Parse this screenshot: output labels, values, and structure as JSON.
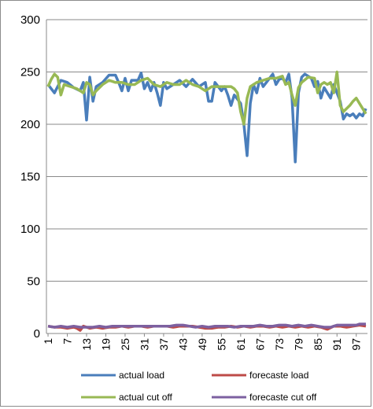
{
  "chart_data": {
    "type": "line",
    "title": "",
    "xlabel": "",
    "ylabel": "",
    "ylim": [
      0,
      300
    ],
    "yticks": [
      0,
      50,
      100,
      150,
      200,
      250,
      300
    ],
    "xlim": [
      1,
      100
    ],
    "xticks": [
      1,
      7,
      13,
      19,
      25,
      31,
      37,
      43,
      49,
      55,
      61,
      67,
      73,
      79,
      85,
      91,
      97
    ],
    "grid": "horizontal",
    "legend": "bottom",
    "series": [
      {
        "name": "actual load",
        "color": "#4a7ebb",
        "keypoints": [
          [
            1,
            238
          ],
          [
            3,
            230
          ],
          [
            5,
            242
          ],
          [
            7,
            240
          ],
          [
            9,
            235
          ],
          [
            11,
            232
          ],
          [
            12,
            240
          ],
          [
            13,
            204
          ],
          [
            14,
            245
          ],
          [
            15,
            222
          ],
          [
            16,
            236
          ],
          [
            18,
            240
          ],
          [
            20,
            247
          ],
          [
            22,
            247
          ],
          [
            23,
            240
          ],
          [
            24,
            232
          ],
          [
            25,
            244
          ],
          [
            26,
            232
          ],
          [
            27,
            242
          ],
          [
            29,
            242
          ],
          [
            30,
            249
          ],
          [
            31,
            234
          ],
          [
            32,
            240
          ],
          [
            33,
            232
          ],
          [
            34,
            240
          ],
          [
            35,
            230
          ],
          [
            36,
            218
          ],
          [
            37,
            240
          ],
          [
            38,
            234
          ],
          [
            40,
            238
          ],
          [
            42,
            242
          ],
          [
            44,
            236
          ],
          [
            46,
            243
          ],
          [
            48,
            236
          ],
          [
            50,
            240
          ],
          [
            51,
            222
          ],
          [
            52,
            222
          ],
          [
            53,
            240
          ],
          [
            55,
            232
          ],
          [
            56,
            236
          ],
          [
            57,
            228
          ],
          [
            58,
            218
          ],
          [
            59,
            228
          ],
          [
            60,
            224
          ],
          [
            61,
            220
          ],
          [
            62,
            200
          ],
          [
            63,
            170
          ],
          [
            64,
            220
          ],
          [
            65,
            238
          ],
          [
            66,
            230
          ],
          [
            67,
            244
          ],
          [
            68,
            236
          ],
          [
            70,
            244
          ],
          [
            71,
            248
          ],
          [
            72,
            238
          ],
          [
            73,
            243
          ],
          [
            74,
            244
          ],
          [
            75,
            240
          ],
          [
            76,
            248
          ],
          [
            77,
            225
          ],
          [
            78,
            164
          ],
          [
            79,
            230
          ],
          [
            80,
            245
          ],
          [
            81,
            248
          ],
          [
            83,
            244
          ],
          [
            84,
            236
          ],
          [
            85,
            241
          ],
          [
            86,
            225
          ],
          [
            87,
            235
          ],
          [
            89,
            225
          ],
          [
            90,
            238
          ],
          [
            92,
            222
          ],
          [
            93,
            205
          ],
          [
            94,
            210
          ],
          [
            95,
            208
          ],
          [
            96,
            210
          ],
          [
            97,
            206
          ],
          [
            98,
            210
          ],
          [
            99,
            208
          ],
          [
            100,
            215
          ]
        ]
      },
      {
        "name": "forecaste load",
        "color": "#be4b48",
        "keypoints": [
          [
            1,
            7
          ],
          [
            3,
            6
          ],
          [
            5,
            6
          ],
          [
            7,
            5
          ],
          [
            9,
            6
          ],
          [
            10,
            5
          ],
          [
            11,
            3
          ],
          [
            12,
            7
          ],
          [
            14,
            5
          ],
          [
            16,
            6
          ],
          [
            18,
            5
          ],
          [
            20,
            6
          ],
          [
            22,
            6
          ],
          [
            24,
            7
          ],
          [
            26,
            6
          ],
          [
            28,
            7
          ],
          [
            30,
            7
          ],
          [
            32,
            6
          ],
          [
            34,
            7
          ],
          [
            36,
            7
          ],
          [
            38,
            7
          ],
          [
            40,
            6
          ],
          [
            42,
            7
          ],
          [
            44,
            7
          ],
          [
            46,
            7
          ],
          [
            48,
            6
          ],
          [
            50,
            5
          ],
          [
            52,
            5
          ],
          [
            54,
            6
          ],
          [
            56,
            6
          ],
          [
            58,
            7
          ],
          [
            60,
            6
          ],
          [
            62,
            7
          ],
          [
            64,
            6
          ],
          [
            66,
            7
          ],
          [
            68,
            7
          ],
          [
            70,
            6
          ],
          [
            72,
            7
          ],
          [
            74,
            6
          ],
          [
            76,
            7
          ],
          [
            78,
            6
          ],
          [
            80,
            7
          ],
          [
            82,
            6
          ],
          [
            84,
            7
          ],
          [
            86,
            6
          ],
          [
            88,
            4
          ],
          [
            90,
            7
          ],
          [
            92,
            7
          ],
          [
            94,
            6
          ],
          [
            96,
            7
          ],
          [
            98,
            8
          ],
          [
            100,
            7
          ]
        ]
      },
      {
        "name": "actual cut off",
        "color": "#98b954",
        "keypoints": [
          [
            1,
            236
          ],
          [
            2,
            243
          ],
          [
            3,
            248
          ],
          [
            4,
            245
          ],
          [
            5,
            228
          ],
          [
            6,
            238
          ],
          [
            8,
            236
          ],
          [
            10,
            234
          ],
          [
            12,
            230
          ],
          [
            13,
            240
          ],
          [
            14,
            238
          ],
          [
            15,
            228
          ],
          [
            16,
            232
          ],
          [
            18,
            238
          ],
          [
            20,
            242
          ],
          [
            22,
            240
          ],
          [
            24,
            240
          ],
          [
            26,
            238
          ],
          [
            28,
            238
          ],
          [
            30,
            242
          ],
          [
            32,
            244
          ],
          [
            34,
            238
          ],
          [
            36,
            236
          ],
          [
            38,
            240
          ],
          [
            40,
            238
          ],
          [
            42,
            238
          ],
          [
            44,
            242
          ],
          [
            46,
            238
          ],
          [
            48,
            236
          ],
          [
            50,
            232
          ],
          [
            52,
            236
          ],
          [
            54,
            236
          ],
          [
            56,
            236
          ],
          [
            58,
            236
          ],
          [
            59,
            234
          ],
          [
            60,
            230
          ],
          [
            61,
            212
          ],
          [
            62,
            200
          ],
          [
            63,
            225
          ],
          [
            64,
            236
          ],
          [
            66,
            240
          ],
          [
            68,
            242
          ],
          [
            70,
            244
          ],
          [
            72,
            244
          ],
          [
            74,
            246
          ],
          [
            75,
            238
          ],
          [
            76,
            240
          ],
          [
            77,
            228
          ],
          [
            78,
            218
          ],
          [
            79,
            235
          ],
          [
            80,
            240
          ],
          [
            82,
            245
          ],
          [
            84,
            244
          ],
          [
            85,
            230
          ],
          [
            86,
            238
          ],
          [
            87,
            240
          ],
          [
            88,
            238
          ],
          [
            89,
            240
          ],
          [
            90,
            230
          ],
          [
            91,
            250
          ],
          [
            92,
            218
          ],
          [
            93,
            212
          ],
          [
            94,
            215
          ],
          [
            95,
            218
          ],
          [
            96,
            222
          ],
          [
            97,
            225
          ],
          [
            98,
            220
          ],
          [
            99,
            215
          ],
          [
            100,
            210
          ]
        ]
      },
      {
        "name": "forecaste cut off",
        "color": "#7d60a0",
        "keypoints": [
          [
            1,
            7
          ],
          [
            3,
            6
          ],
          [
            5,
            7
          ],
          [
            7,
            6
          ],
          [
            9,
            7
          ],
          [
            11,
            6
          ],
          [
            13,
            6
          ],
          [
            15,
            6
          ],
          [
            17,
            7
          ],
          [
            19,
            6
          ],
          [
            21,
            7
          ],
          [
            23,
            7
          ],
          [
            25,
            7
          ],
          [
            27,
            7
          ],
          [
            29,
            7
          ],
          [
            31,
            7
          ],
          [
            33,
            7
          ],
          [
            35,
            7
          ],
          [
            37,
            7
          ],
          [
            39,
            7
          ],
          [
            41,
            8
          ],
          [
            43,
            8
          ],
          [
            45,
            7
          ],
          [
            47,
            6
          ],
          [
            49,
            7
          ],
          [
            51,
            6
          ],
          [
            53,
            7
          ],
          [
            55,
            7
          ],
          [
            57,
            7
          ],
          [
            59,
            6
          ],
          [
            61,
            7
          ],
          [
            63,
            7
          ],
          [
            65,
            7
          ],
          [
            67,
            8
          ],
          [
            69,
            7
          ],
          [
            71,
            7
          ],
          [
            73,
            8
          ],
          [
            75,
            8
          ],
          [
            77,
            7
          ],
          [
            79,
            8
          ],
          [
            81,
            7
          ],
          [
            83,
            8
          ],
          [
            85,
            7
          ],
          [
            87,
            6
          ],
          [
            89,
            6
          ],
          [
            91,
            8
          ],
          [
            93,
            8
          ],
          [
            95,
            8
          ],
          [
            97,
            8
          ],
          [
            98,
            9
          ],
          [
            100,
            9
          ]
        ]
      }
    ]
  }
}
